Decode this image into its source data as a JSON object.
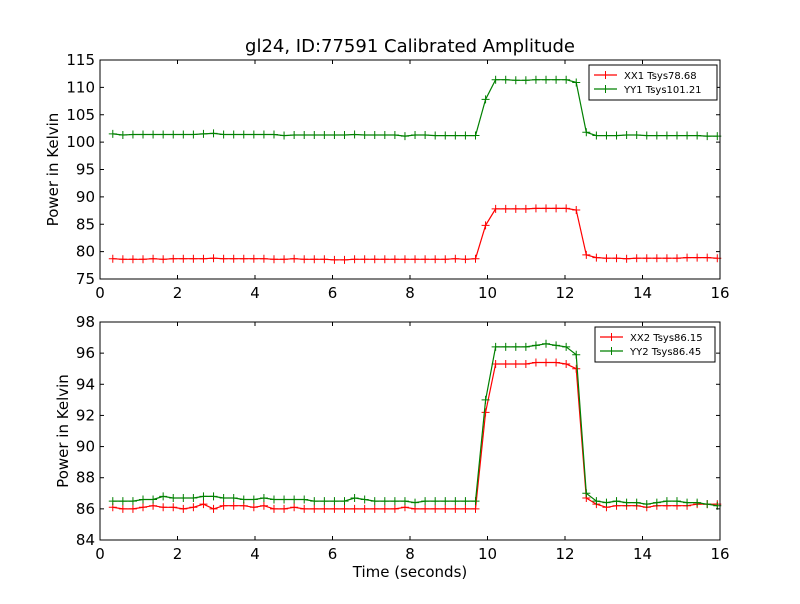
{
  "chart_data": [
    {
      "type": "line",
      "title": "gl24, ID:77591 Calibrated Amplitude",
      "xlabel": "",
      "ylabel": "Power in Kelvin",
      "xlim": [
        0,
        16
      ],
      "ylim": [
        75,
        115
      ],
      "xticks": [
        "0",
        "2",
        "4",
        "6",
        "8",
        "10",
        "12",
        "14",
        "16"
      ],
      "yticks": [
        "75",
        "80",
        "85",
        "90",
        "95",
        "100",
        "105",
        "110",
        "115"
      ],
      "legend_position": "top-right",
      "marker": "plus",
      "x": [
        0.33,
        0.59,
        0.85,
        1.11,
        1.37,
        1.63,
        1.89,
        2.15,
        2.41,
        2.67,
        2.93,
        3.19,
        3.45,
        3.71,
        3.97,
        4.23,
        4.49,
        4.75,
        5.01,
        5.27,
        5.53,
        5.79,
        6.05,
        6.31,
        6.57,
        6.83,
        7.09,
        7.35,
        7.61,
        7.87,
        8.13,
        8.39,
        8.65,
        8.91,
        9.17,
        9.43,
        9.69,
        9.95,
        10.21,
        10.47,
        10.73,
        10.99,
        11.25,
        11.51,
        11.77,
        12.03,
        12.29,
        12.55,
        12.81,
        13.07,
        13.33,
        13.59,
        13.85,
        14.11,
        14.37,
        14.63,
        14.89,
        15.15,
        15.41,
        15.67,
        15.93
      ],
      "series": [
        {
          "name": "XX1 Tsys78.68",
          "color": "#ff0000",
          "values": [
            78.7,
            78.6,
            78.6,
            78.6,
            78.7,
            78.6,
            78.7,
            78.7,
            78.7,
            78.7,
            78.8,
            78.7,
            78.7,
            78.7,
            78.7,
            78.7,
            78.6,
            78.6,
            78.7,
            78.6,
            78.6,
            78.6,
            78.5,
            78.5,
            78.6,
            78.6,
            78.6,
            78.6,
            78.6,
            78.6,
            78.6,
            78.6,
            78.6,
            78.6,
            78.7,
            78.6,
            78.7,
            84.8,
            87.8,
            87.8,
            87.8,
            87.8,
            87.9,
            87.9,
            87.9,
            87.9,
            87.6,
            79.4,
            78.9,
            78.8,
            78.8,
            78.7,
            78.8,
            78.8,
            78.8,
            78.8,
            78.8,
            78.9,
            78.9,
            78.9,
            78.8
          ]
        },
        {
          "name": "YY1 Tsys101.21",
          "color": "#008000",
          "values": [
            101.5,
            101.3,
            101.4,
            101.4,
            101.4,
            101.4,
            101.4,
            101.4,
            101.4,
            101.5,
            101.6,
            101.4,
            101.4,
            101.4,
            101.4,
            101.4,
            101.4,
            101.2,
            101.3,
            101.3,
            101.3,
            101.3,
            101.3,
            101.3,
            101.4,
            101.3,
            101.3,
            101.3,
            101.3,
            101.1,
            101.3,
            101.3,
            101.2,
            101.2,
            101.2,
            101.2,
            101.2,
            107.8,
            111.4,
            111.4,
            111.3,
            111.3,
            111.4,
            111.4,
            111.4,
            111.4,
            110.9,
            101.8,
            101.2,
            101.2,
            101.2,
            101.3,
            101.3,
            101.2,
            101.2,
            101.2,
            101.2,
            101.2,
            101.2,
            101.1,
            101.1
          ]
        }
      ]
    },
    {
      "type": "line",
      "title": "",
      "xlabel": "Time (seconds)",
      "ylabel": "Power in Kelvin",
      "xlim": [
        0,
        16
      ],
      "ylim": [
        84,
        98
      ],
      "xticks": [
        "0",
        "2",
        "4",
        "6",
        "8",
        "10",
        "12",
        "14",
        "16"
      ],
      "yticks": [
        "84",
        "86",
        "88",
        "90",
        "92",
        "94",
        "96",
        "98"
      ],
      "legend_position": "top-right",
      "marker": "plus",
      "x": [
        0.33,
        0.59,
        0.85,
        1.11,
        1.37,
        1.63,
        1.89,
        2.15,
        2.41,
        2.67,
        2.93,
        3.19,
        3.45,
        3.71,
        3.97,
        4.23,
        4.49,
        4.75,
        5.01,
        5.27,
        5.53,
        5.79,
        6.05,
        6.31,
        6.57,
        6.83,
        7.09,
        7.35,
        7.61,
        7.87,
        8.13,
        8.39,
        8.65,
        8.91,
        9.17,
        9.43,
        9.69,
        9.95,
        10.21,
        10.47,
        10.73,
        10.99,
        11.25,
        11.51,
        11.77,
        12.03,
        12.29,
        12.55,
        12.81,
        13.07,
        13.33,
        13.59,
        13.85,
        14.11,
        14.37,
        14.63,
        14.89,
        15.15,
        15.41,
        15.67,
        15.93
      ],
      "series": [
        {
          "name": "XX2 Tsys86.15",
          "color": "#ff0000",
          "values": [
            86.1,
            86.0,
            86.0,
            86.1,
            86.2,
            86.1,
            86.1,
            86.0,
            86.1,
            86.3,
            86.0,
            86.2,
            86.2,
            86.2,
            86.1,
            86.2,
            86.0,
            86.0,
            86.1,
            86.0,
            86.0,
            86.0,
            86.0,
            86.0,
            86.0,
            86.0,
            86.0,
            86.0,
            86.0,
            86.1,
            86.0,
            86.0,
            86.0,
            86.0,
            86.0,
            86.0,
            86.0,
            92.2,
            95.3,
            95.3,
            95.3,
            95.3,
            95.4,
            95.4,
            95.4,
            95.3,
            95.0,
            86.7,
            86.3,
            86.1,
            86.2,
            86.2,
            86.2,
            86.1,
            86.2,
            86.2,
            86.2,
            86.2,
            86.3,
            86.3,
            86.3
          ]
        },
        {
          "name": "YY2 Tsys86.45",
          "color": "#008000",
          "values": [
            86.5,
            86.5,
            86.5,
            86.6,
            86.6,
            86.8,
            86.7,
            86.7,
            86.7,
            86.8,
            86.8,
            86.7,
            86.7,
            86.6,
            86.6,
            86.7,
            86.6,
            86.6,
            86.6,
            86.6,
            86.5,
            86.5,
            86.5,
            86.5,
            86.7,
            86.6,
            86.5,
            86.5,
            86.5,
            86.5,
            86.4,
            86.5,
            86.5,
            86.5,
            86.5,
            86.5,
            86.5,
            93.0,
            96.4,
            96.4,
            96.4,
            96.4,
            96.5,
            96.6,
            96.5,
            96.4,
            95.9,
            87.0,
            86.5,
            86.4,
            86.5,
            86.4,
            86.4,
            86.3,
            86.4,
            86.5,
            86.5,
            86.4,
            86.4,
            86.3,
            86.2
          ]
        }
      ]
    }
  ]
}
